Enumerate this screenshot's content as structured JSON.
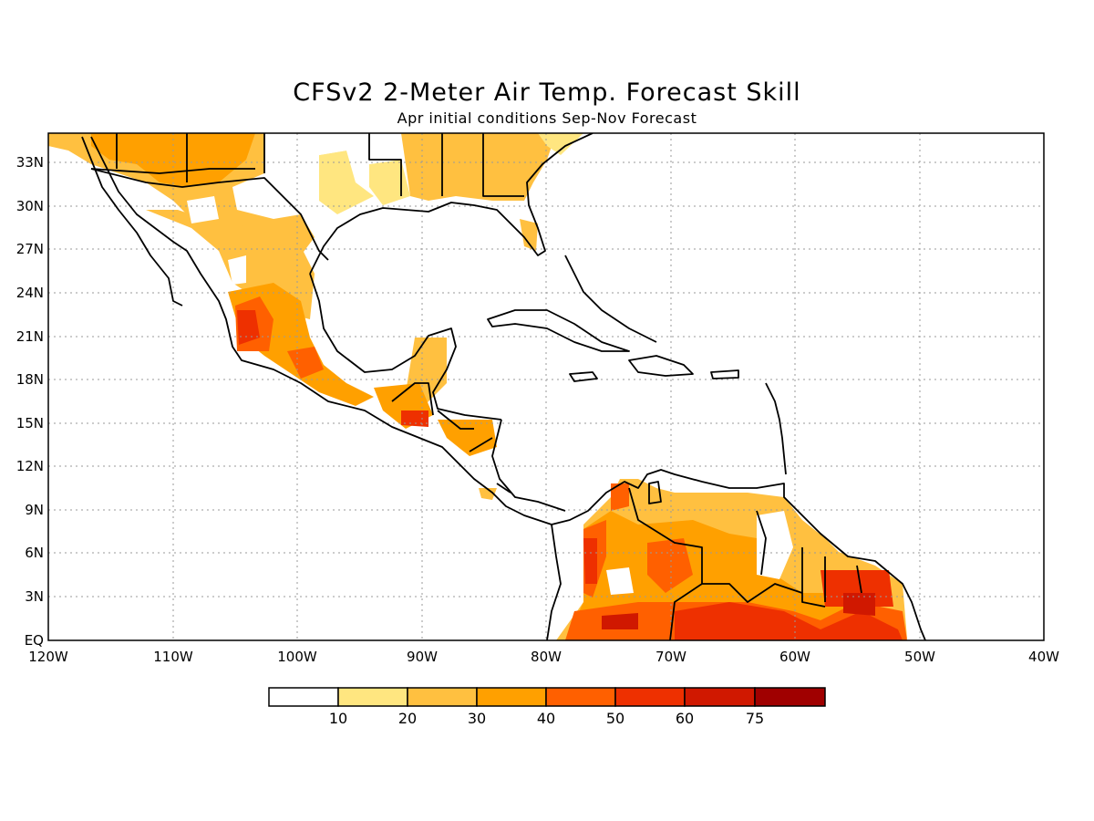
{
  "title": "CFSv2 2-Meter Air Temp. Forecast Skill",
  "subtitle": "Apr initial conditions  Sep-Nov Forecast",
  "lat_labels": [
    "33N",
    "30N",
    "27N",
    "24N",
    "21N",
    "18N",
    "15N",
    "12N",
    "9N",
    "6N",
    "3N",
    "EQ"
  ],
  "lon_labels": [
    "120W",
    "110W",
    "100W",
    "90W",
    "80W",
    "70W",
    "60W",
    "50W",
    "40W"
  ],
  "colorbar": {
    "labels": [
      "10",
      "20",
      "30",
      "40",
      "50",
      "60",
      "75"
    ],
    "colors": [
      "#ffffff",
      "#ffe680",
      "#ffc040",
      "#ffa000",
      "#ff6000",
      "#ee3000",
      "#d01800",
      "#a00000"
    ]
  }
}
